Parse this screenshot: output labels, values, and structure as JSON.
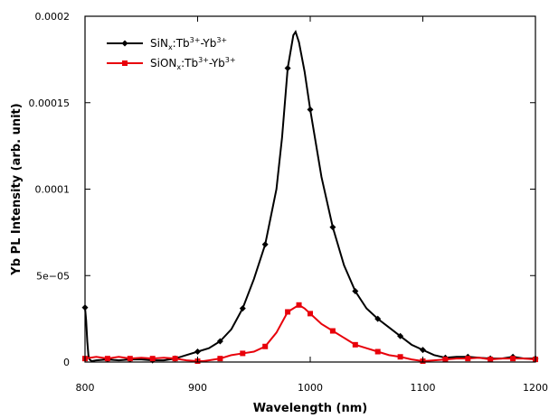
{
  "chart_data": {
    "type": "line",
    "xlabel": "Wavelength (nm)",
    "ylabel": "Yb PL Intensity (arb. unit)",
    "xlim": [
      800,
      1200
    ],
    "ylim": [
      0,
      0.0002
    ],
    "x_ticks": [
      800,
      900,
      1000,
      1100,
      1200
    ],
    "y_ticks": [
      0,
      5e-05,
      0.0001,
      0.00015,
      0.0002
    ],
    "x_tick_labels": [
      "800",
      "900",
      "1000",
      "1100",
      "1200"
    ],
    "y_tick_labels": [
      "0",
      "5e−05",
      "0.0001",
      "0.00015",
      "0.0002"
    ],
    "legend_position": "top-left",
    "series": [
      {
        "name_parts": [
          "SiN",
          "x",
          ":Tb",
          "3+",
          "-Yb",
          "3+"
        ],
        "color": "#000000",
        "marker": "diamond",
        "points": [
          [
            800,
            3.15e-05
          ],
          [
            801,
            2.4e-05
          ],
          [
            802,
            1.2e-05
          ],
          [
            803,
            4e-06
          ],
          [
            804,
            1.5e-06
          ],
          [
            806,
            5e-07
          ],
          [
            810,
            1e-06
          ],
          [
            820,
            1.5e-06
          ],
          [
            830,
            1e-06
          ],
          [
            840,
            1.5e-06
          ],
          [
            850,
            1.5e-06
          ],
          [
            860,
            1e-06
          ],
          [
            870,
            1e-06
          ],
          [
            880,
            2e-06
          ],
          [
            890,
            4e-06
          ],
          [
            900,
            6e-06
          ],
          [
            910,
            8e-06
          ],
          [
            920,
            1.2e-05
          ],
          [
            930,
            1.9e-05
          ],
          [
            940,
            3.1e-05
          ],
          [
            950,
            4.8e-05
          ],
          [
            960,
            6.8e-05
          ],
          [
            970,
            0.0001
          ],
          [
            975,
            0.00013
          ],
          [
            980,
            0.00017
          ],
          [
            985,
            0.000189
          ],
          [
            987,
            0.000191
          ],
          [
            990,
            0.000185
          ],
          [
            995,
            0.000168
          ],
          [
            1000,
            0.000146
          ],
          [
            1010,
            0.000107
          ],
          [
            1020,
            7.8e-05
          ],
          [
            1030,
            5.6e-05
          ],
          [
            1040,
            4.1e-05
          ],
          [
            1050,
            3.1e-05
          ],
          [
            1060,
            2.5e-05
          ],
          [
            1070,
            2e-05
          ],
          [
            1080,
            1.5e-05
          ],
          [
            1090,
            1e-05
          ],
          [
            1100,
            7e-06
          ],
          [
            1110,
            4e-06
          ],
          [
            1120,
            2.5e-06
          ],
          [
            1130,
            3e-06
          ],
          [
            1140,
            3e-06
          ],
          [
            1150,
            2.5e-06
          ],
          [
            1160,
            2e-06
          ],
          [
            1170,
            2e-06
          ],
          [
            1180,
            3e-06
          ],
          [
            1190,
            2e-06
          ],
          [
            1200,
            2e-06
          ]
        ],
        "marker_x": [
          800,
          820,
          840,
          860,
          880,
          900,
          920,
          940,
          960,
          980,
          1000,
          1020,
          1040,
          1060,
          1080,
          1100,
          1120,
          1140,
          1160,
          1180,
          1200
        ]
      },
      {
        "name_parts": [
          "SiON",
          "x",
          ":Tb",
          "3+",
          "-Yb",
          "3+"
        ],
        "color": "#e8000a",
        "marker": "square",
        "points": [
          [
            800,
            2e-06
          ],
          [
            810,
            3e-06
          ],
          [
            820,
            2e-06
          ],
          [
            830,
            3e-06
          ],
          [
            840,
            2e-06
          ],
          [
            850,
            2.5e-06
          ],
          [
            860,
            2e-06
          ],
          [
            870,
            2.5e-06
          ],
          [
            880,
            2e-06
          ],
          [
            890,
            1e-06
          ],
          [
            900,
            5e-07
          ],
          [
            905,
            5e-07
          ],
          [
            910,
            1e-06
          ],
          [
            920,
            2e-06
          ],
          [
            930,
            4e-06
          ],
          [
            940,
            5e-06
          ],
          [
            950,
            6e-06
          ],
          [
            960,
            9e-06
          ],
          [
            970,
            1.7e-05
          ],
          [
            980,
            2.9e-05
          ],
          [
            985,
            3.1e-05
          ],
          [
            990,
            3.3e-05
          ],
          [
            995,
            3.1e-05
          ],
          [
            1000,
            2.8e-05
          ],
          [
            1010,
            2.2e-05
          ],
          [
            1020,
            1.8e-05
          ],
          [
            1030,
            1.4e-05
          ],
          [
            1040,
            1e-05
          ],
          [
            1050,
            8e-06
          ],
          [
            1060,
            6e-06
          ],
          [
            1070,
            4e-06
          ],
          [
            1080,
            3e-06
          ],
          [
            1090,
            1.5e-06
          ],
          [
            1100,
            5e-07
          ],
          [
            1110,
            1e-06
          ],
          [
            1120,
            1.5e-06
          ],
          [
            1130,
            2e-06
          ],
          [
            1140,
            2e-06
          ],
          [
            1150,
            2.5e-06
          ],
          [
            1160,
            1.5e-06
          ],
          [
            1170,
            2e-06
          ],
          [
            1180,
            2e-06
          ],
          [
            1190,
            2e-06
          ],
          [
            1200,
            1.5e-06
          ]
        ],
        "marker_x": [
          800,
          820,
          840,
          860,
          880,
          900,
          920,
          940,
          960,
          980,
          990,
          1000,
          1020,
          1040,
          1060,
          1080,
          1100,
          1120,
          1140,
          1160,
          1180,
          1200
        ]
      }
    ]
  }
}
